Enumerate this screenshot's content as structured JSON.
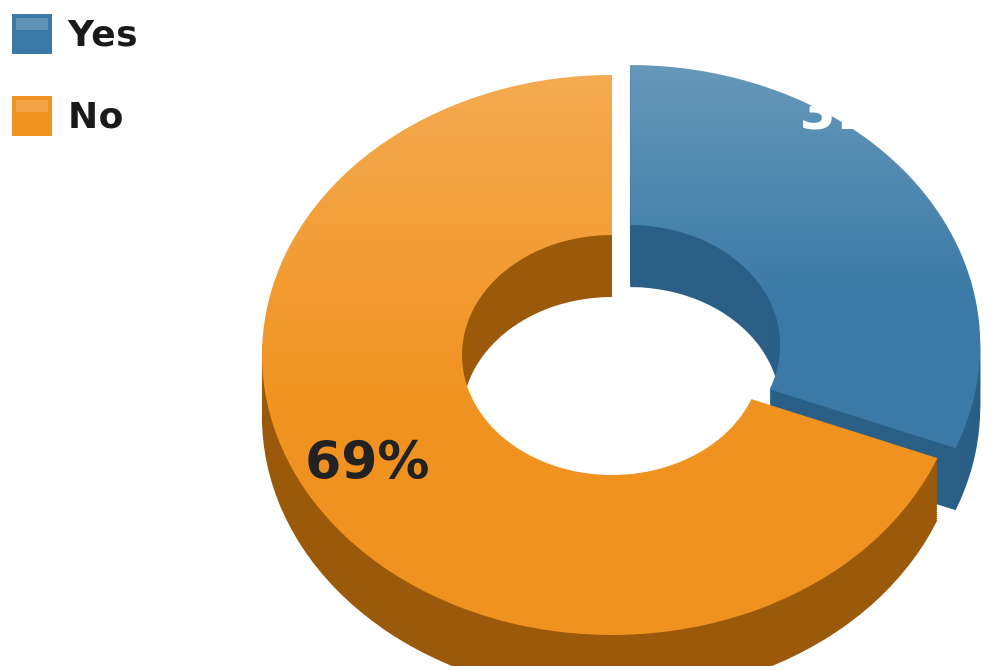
{
  "chart_data": {
    "type": "pie",
    "style": "3d-donut",
    "title": "",
    "legend_position": "top-left",
    "slices": [
      {
        "label": "Yes",
        "value": 31,
        "display": "31%",
        "color": "#3b7aa6",
        "side_color": "#2a5f86",
        "label_color": "#ffffff"
      },
      {
        "label": "No",
        "value": 69,
        "display": "69%",
        "color": "#f0921f",
        "side_color": "#9b5a0b",
        "label_color": "#222222"
      }
    ]
  }
}
